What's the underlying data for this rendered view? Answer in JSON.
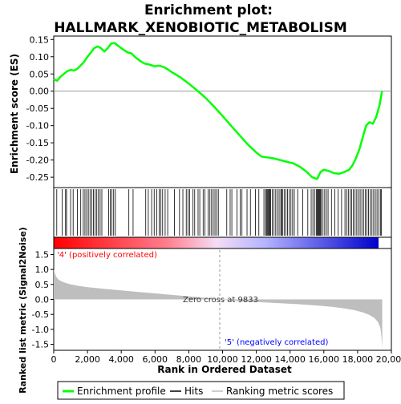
{
  "chart_data": [
    {
      "type": "line",
      "title_line1": "Enrichment plot:",
      "title_line2": "HALLMARK_XENOBIOTIC_METABOLISM",
      "ylabel": "Enrichment score (ES)",
      "ylim": [
        -0.28,
        0.16
      ],
      "yticks": [
        0.15,
        0.1,
        0.05,
        0.0,
        -0.05,
        -0.1,
        -0.15,
        -0.2,
        -0.25
      ],
      "ytick_labels": [
        "0.15",
        "0.10",
        "0.05",
        "0.00",
        "-0.05",
        "-0.10",
        "-0.15",
        "-0.20",
        "-0.25"
      ],
      "line_color": "#00ff00",
      "series": [
        {
          "name": "Enrichment profile",
          "x": [
            0,
            200,
            400,
            600,
            800,
            1000,
            1200,
            1400,
            1600,
            1800,
            2000,
            2200,
            2400,
            2600,
            2800,
            3000,
            3200,
            3400,
            3600,
            3800,
            4000,
            4200,
            4400,
            4600,
            4800,
            5000,
            5200,
            5400,
            5600,
            5800,
            6000,
            6200,
            6400,
            6600,
            6800,
            7000,
            7500,
            8000,
            8500,
            9000,
            9500,
            10000,
            10500,
            11000,
            11500,
            12000,
            12300,
            12600,
            13000,
            13400,
            13800,
            14200,
            14600,
            15000,
            15300,
            15600,
            15800,
            16000,
            16300,
            16600,
            16900,
            17200,
            17500,
            17700,
            17900,
            18100,
            18300,
            18500,
            18700,
            18900,
            19100,
            19300,
            19450
          ],
          "y": [
            0.035,
            0.03,
            0.042,
            0.05,
            0.058,
            0.062,
            0.06,
            0.065,
            0.075,
            0.085,
            0.1,
            0.112,
            0.125,
            0.13,
            0.125,
            0.115,
            0.125,
            0.138,
            0.14,
            0.132,
            0.125,
            0.118,
            0.112,
            0.11,
            0.1,
            0.092,
            0.085,
            0.08,
            0.078,
            0.075,
            0.072,
            0.074,
            0.072,
            0.068,
            0.062,
            0.055,
            0.04,
            0.022,
            0.002,
            -0.02,
            -0.045,
            -0.072,
            -0.1,
            -0.128,
            -0.155,
            -0.178,
            -0.19,
            -0.192,
            -0.195,
            -0.2,
            -0.205,
            -0.21,
            -0.22,
            -0.235,
            -0.25,
            -0.255,
            -0.235,
            -0.228,
            -0.232,
            -0.238,
            -0.24,
            -0.235,
            -0.228,
            -0.215,
            -0.195,
            -0.17,
            -0.135,
            -0.1,
            -0.09,
            -0.095,
            -0.075,
            -0.04,
            0.0
          ]
        }
      ]
    },
    {
      "type": "hits",
      "hits_label": "Hits",
      "hit_positions": [
        180,
        500,
        700,
        760,
        1000,
        1150,
        1400,
        1600,
        1750,
        1850,
        1950,
        2050,
        2150,
        2250,
        2350,
        2450,
        2550,
        2650,
        2750,
        2850,
        3250,
        3350,
        3450,
        3550,
        3650,
        4450,
        4700,
        5450,
        5600,
        5800,
        5950,
        6100,
        6250,
        6350,
        6450,
        6600,
        6750,
        7150,
        7450,
        7650,
        7850,
        7950,
        8050,
        8250,
        8350,
        8550,
        8650,
        8850,
        8950,
        9150,
        9250,
        9350,
        9450,
        9550,
        9650,
        9750,
        10250,
        10450,
        10550,
        10850,
        11050,
        11150,
        11450,
        11650,
        11950,
        12150,
        12450,
        12550,
        12600,
        12650,
        12700,
        12750,
        12800,
        12850,
        12950,
        13050,
        13150,
        13250,
        13350,
        13450,
        13500,
        13550,
        13650,
        13750,
        13850,
        13950,
        14050,
        14150,
        14250,
        14450,
        14750,
        15050,
        15250,
        15350,
        15450,
        15550,
        15600,
        15650,
        15700,
        15750,
        15800,
        15850,
        15950,
        16050,
        16150,
        16250,
        16450,
        16650,
        16850,
        17050,
        17250,
        17350,
        17450,
        17550,
        17650,
        17750,
        17850,
        17950,
        18050,
        18150,
        18250,
        18350,
        18450,
        18550,
        18650,
        18750,
        18850,
        18950,
        19050,
        19150,
        19250,
        19350,
        19400
      ]
    },
    {
      "type": "area",
      "ylabel": "Ranked list metric (Signal2Noise)",
      "xlabel": "Rank in Ordered Dataset",
      "xlim": [
        0,
        20000
      ],
      "xticks": [
        0,
        2000,
        4000,
        6000,
        8000,
        10000,
        12000,
        14000,
        16000,
        18000,
        20000
      ],
      "xtick_labels": [
        "0",
        "2,000",
        "4,000",
        "6,000",
        "8,000",
        "10,000",
        "12,000",
        "14,000",
        "16,000",
        "18,000",
        "20,000"
      ],
      "ylim": [
        -1.7,
        1.7
      ],
      "yticks": [
        1.5,
        1.0,
        0.5,
        0.0,
        -0.5,
        -1.0,
        -1.5
      ],
      "ytick_labels": [
        "1.5",
        "1.0",
        "0.5",
        "0.0",
        "-0.5",
        "-1.0",
        "-1.5"
      ],
      "x": [
        0,
        50,
        150,
        300,
        600,
        1000,
        1500,
        2000,
        3000,
        4000,
        5000,
        6000,
        7000,
        8000,
        9000,
        9833,
        10500,
        11500,
        12500,
        13500,
        14500,
        15500,
        16500,
        17200,
        17800,
        18300,
        18700,
        19000,
        19200,
        19350,
        19420,
        19460
      ],
      "values": [
        1.0,
        0.9,
        0.75,
        0.65,
        0.57,
        0.5,
        0.45,
        0.41,
        0.35,
        0.3,
        0.25,
        0.2,
        0.15,
        0.1,
        0.05,
        0.0,
        -0.04,
        -0.07,
        -0.1,
        -0.13,
        -0.16,
        -0.2,
        -0.25,
        -0.3,
        -0.36,
        -0.43,
        -0.52,
        -0.62,
        -0.75,
        -0.95,
        -1.3,
        -1.65
      ],
      "fill_color": "#bebebe",
      "zero_cross_label": "Zero cross at 9833",
      "zero_cross": 9833,
      "pos_label": "'4' (positively correlated)",
      "neg_label": "'5' (negatively correlated)",
      "pos_color": "#ff0000",
      "neg_color": "#0000ff"
    }
  ],
  "legend": {
    "items": [
      {
        "label": "Enrichment profile",
        "color": "#00ff00"
      },
      {
        "label": "Hits",
        "color": "#000000"
      },
      {
        "label": "Ranking metric scores",
        "color": "#bebebe"
      }
    ]
  }
}
